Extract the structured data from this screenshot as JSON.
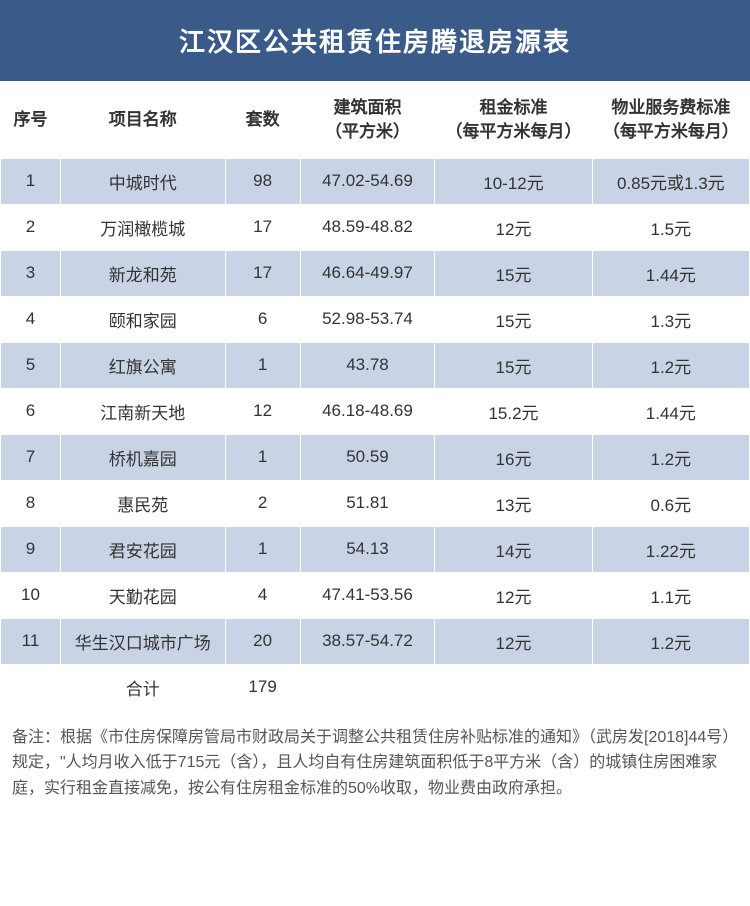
{
  "title": "江汉区公共租赁住房腾退房源表",
  "headers": {
    "seq": "序号",
    "name": "项目名称",
    "count": "套数",
    "area": "建筑面积\n（平方米）",
    "rent": "租金标准\n（每平方米每月）",
    "fee": "物业服务费标准\n（每平方米每月）"
  },
  "rows": [
    {
      "seq": "1",
      "name": "中城时代",
      "count": "98",
      "area": "47.02-54.69",
      "rent": "10-12元",
      "fee": "0.85元或1.3元"
    },
    {
      "seq": "2",
      "name": "万润橄榄城",
      "count": "17",
      "area": "48.59-48.82",
      "rent": "12元",
      "fee": "1.5元"
    },
    {
      "seq": "3",
      "name": "新龙和苑",
      "count": "17",
      "area": "46.64-49.97",
      "rent": "15元",
      "fee": "1.44元"
    },
    {
      "seq": "4",
      "name": "颐和家园",
      "count": "6",
      "area": "52.98-53.74",
      "rent": "15元",
      "fee": "1.3元"
    },
    {
      "seq": "5",
      "name": "红旗公寓",
      "count": "1",
      "area": "43.78",
      "rent": "15元",
      "fee": "1.2元"
    },
    {
      "seq": "6",
      "name": "江南新天地",
      "count": "12",
      "area": "46.18-48.69",
      "rent": "15.2元",
      "fee": "1.44元"
    },
    {
      "seq": "7",
      "name": "桥机嘉园",
      "count": "1",
      "area": "50.59",
      "rent": "16元",
      "fee": "1.2元"
    },
    {
      "seq": "8",
      "name": "惠民苑",
      "count": "2",
      "area": "51.81",
      "rent": "13元",
      "fee": "0.6元"
    },
    {
      "seq": "9",
      "name": "君安花园",
      "count": "1",
      "area": "54.13",
      "rent": "14元",
      "fee": "1.22元"
    },
    {
      "seq": "10",
      "name": "天勤花园",
      "count": "4",
      "area": "47.41-53.56",
      "rent": "12元",
      "fee": "1.1元"
    },
    {
      "seq": "11",
      "name": "华生汉口城市广场",
      "count": "20",
      "area": "38.57-54.72",
      "rent": "12元",
      "fee": "1.2元"
    }
  ],
  "total": {
    "label": "合计",
    "count": "179"
  },
  "footnote": "备注：根据《市住房保障房管局市财政局关于调整公共租赁住房补贴标准的通知》（武房发[2018]44号）规定，\"人均月收入低于715元（含），且人均自有住房建筑面积低于8平方米（含）的城镇住房困难家庭，实行租金直接减免，按公有住房租金标准的50%收取，物业费由政府承担。",
  "colors": {
    "title_bg": "#3a5a8a",
    "title_text": "#ffffff",
    "row_odd_bg": "#c9d3e6",
    "row_even_bg": "#ffffff",
    "border": "#ffffff",
    "text": "#333333",
    "footnote_text": "#555555"
  },
  "typography": {
    "title_fontsize": 26,
    "header_fontsize": 17,
    "cell_fontsize": 17,
    "footnote_fontsize": 16
  },
  "column_widths": {
    "seq": "8%",
    "name": "22%",
    "count": "10%",
    "area": "18%",
    "rent": "21%",
    "fee": "21%"
  }
}
